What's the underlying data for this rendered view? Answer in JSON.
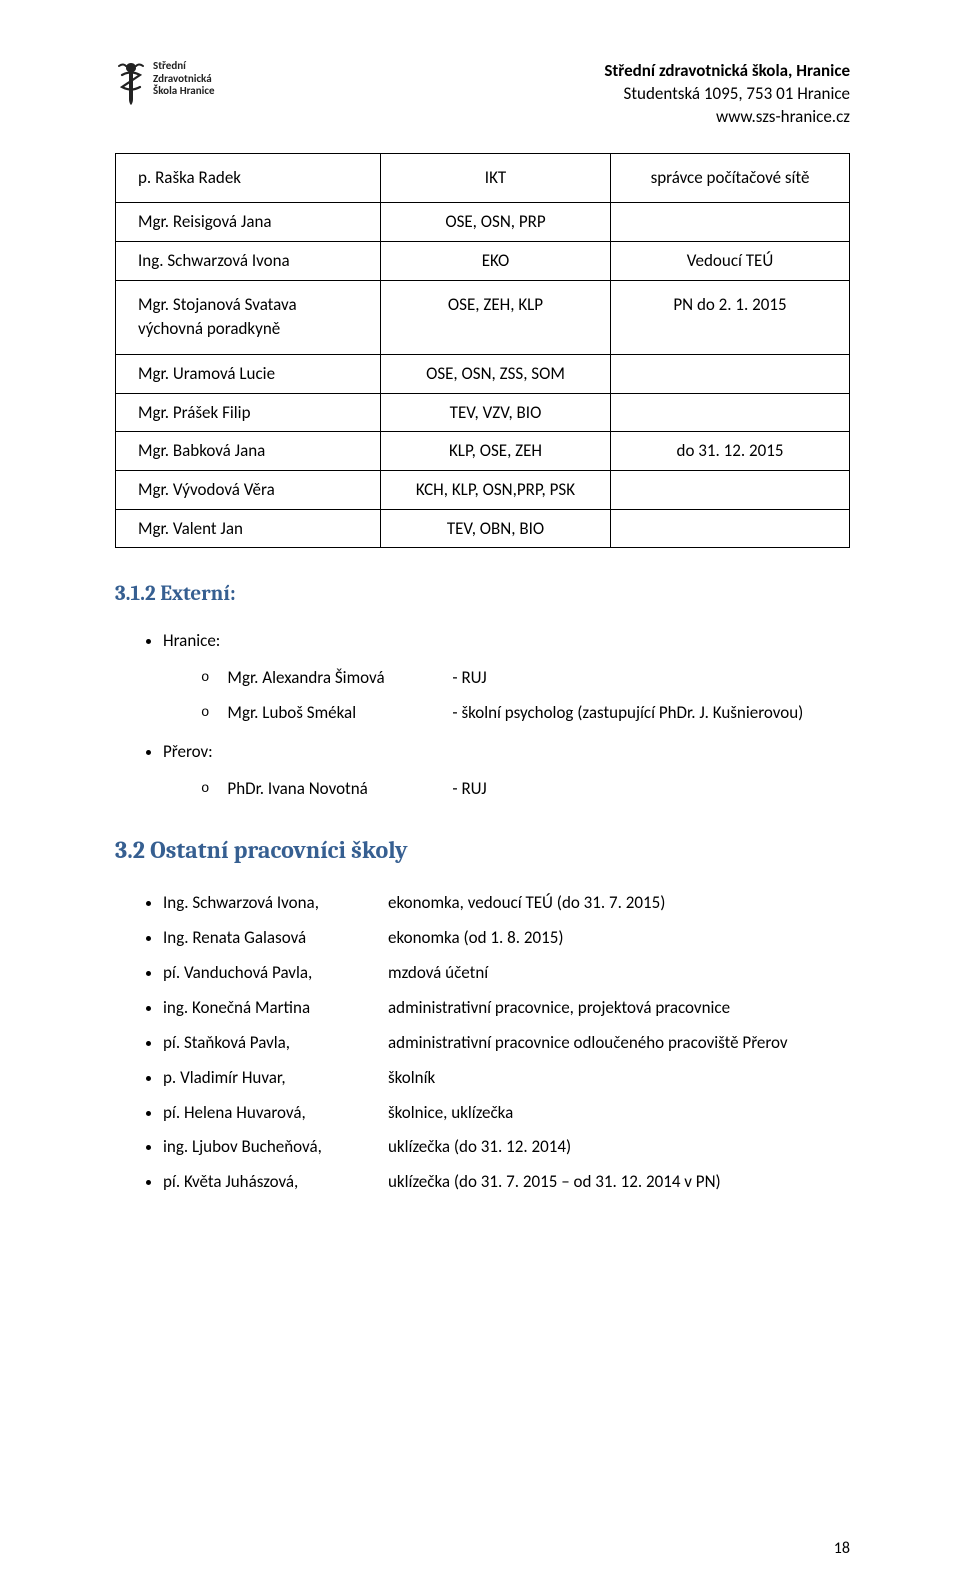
{
  "header": {
    "logo_text_lines": [
      "Střední",
      "Zdravotnická",
      "Škola Hranice"
    ],
    "org_name": "Střední zdravotnická škola, Hranice",
    "address": "Studentská 1095, 753 01 Hranice",
    "website": "www.szs-hranice.cz"
  },
  "staff_table": {
    "rows": [
      {
        "name": "p. Raška Radek",
        "col2": "IKT",
        "col3": "správce počítačové sítě",
        "tall": true
      },
      {
        "name": "Mgr. Reisigová Jana",
        "col2": "OSE, OSN, PRP",
        "col3": ""
      },
      {
        "name": "Ing. Schwarzová Ivona",
        "col2": "EKO",
        "col3": "Vedoucí TEÚ"
      },
      {
        "name": "Mgr. Stojanová Svatava\nvýchovná poradkyně",
        "col2": "OSE, ZEH, KLP",
        "col3": "PN do 2. 1. 2015",
        "tall": true
      },
      {
        "name": "Mgr. Uramová Lucie",
        "col2": "OSE, OSN, ZSS, SOM",
        "col3": ""
      },
      {
        "name": "Mgr. Prášek Filip",
        "col2": "TEV, VZV, BIO",
        "col3": ""
      },
      {
        "name": "Mgr. Babková Jana",
        "col2": "KLP, OSE, ZEH",
        "col3": "do 31. 12. 2015"
      },
      {
        "name": "Mgr. Vývodová Věra",
        "col2": "KCH, KLP, OSN,PRP, PSK",
        "col3": ""
      },
      {
        "name": "Mgr. Valent Jan",
        "col2": "TEV, OBN, BIO",
        "col3": ""
      }
    ]
  },
  "sections": {
    "external_heading": "3.1.2  Externí:",
    "other_workers_heading": "3.2  Ostatní pracovníci školy"
  },
  "external": {
    "hranice_label": "Hranice:",
    "prerov_label": "Přerov:",
    "hranice": [
      {
        "name": "Mgr. Alexandra Šimová",
        "role": "- RUJ"
      },
      {
        "name": "Mgr. Luboš Smékal",
        "role": "- školní psycholog (zastupující PhDr. J. Kušnierovou)"
      }
    ],
    "prerov": [
      {
        "name": "PhDr. Ivana Novotná",
        "role": "- RUJ"
      }
    ]
  },
  "workers": [
    {
      "name": "Ing. Schwarzová Ivona,",
      "desc": "ekonomka, vedoucí TEÚ (do 31. 7. 2015)"
    },
    {
      "name": "Ing. Renata Galasová",
      "desc": "ekonomka (od 1. 8. 2015)"
    },
    {
      "name": "pí. Vanduchová Pavla,",
      "desc": "mzdová účetní"
    },
    {
      "name": "ing. Konečná Martina",
      "desc": "administrativní pracovnice, projektová pracovnice"
    },
    {
      "name": "pí. Staňková Pavla,",
      "desc": "administrativní pracovnice odloučeného pracoviště Přerov"
    },
    {
      "name": "p. Vladimír Huvar,",
      "desc": "školník"
    },
    {
      "name": "pí. Helena Huvarová,",
      "desc": "školnice, uklízečka"
    },
    {
      "name": "ing. Ljubov Bucheňová,",
      "desc": "uklízečka        (do 31. 12. 2014)"
    },
    {
      "name": "pí. Květa Juhászová,",
      "desc": "uklízečka        (do 31. 7. 2015 – od 31. 12. 2014 v PN)"
    }
  ],
  "page_number": "18",
  "colors": {
    "text": "#000000",
    "heading": "#365f91",
    "border": "#000000",
    "background": "#ffffff"
  }
}
